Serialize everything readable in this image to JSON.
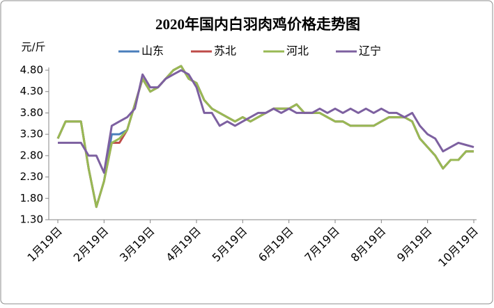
{
  "chart_data": {
    "type": "line",
    "title": "2020年国内白羽肉鸡价格走势图",
    "y_label": "元/斤",
    "categories": [
      "1月19日",
      null,
      null,
      null,
      null,
      null,
      "2月19日",
      null,
      null,
      null,
      null,
      null,
      "3月19日",
      null,
      null,
      null,
      null,
      null,
      "4月19日",
      null,
      null,
      null,
      null,
      null,
      "5月19日",
      null,
      null,
      null,
      null,
      null,
      "6月19日",
      null,
      null,
      null,
      null,
      null,
      "7月19日",
      null,
      null,
      null,
      null,
      null,
      "8月19日",
      null,
      null,
      null,
      null,
      null,
      "9月19日",
      null,
      null,
      null,
      null,
      null,
      "10月19日"
    ],
    "ylim": [
      1.3,
      4.8
    ],
    "yticks": [
      {
        "value": 1.3,
        "label": "1.30"
      },
      {
        "value": 1.8,
        "label": "1.80"
      },
      {
        "value": 2.3,
        "label": "2.30"
      },
      {
        "value": 2.8,
        "label": "2.80"
      },
      {
        "value": 3.3,
        "label": "3.30"
      },
      {
        "value": 3.8,
        "label": "3.80"
      },
      {
        "value": 4.3,
        "label": "4.30"
      },
      {
        "value": 4.8,
        "label": "4.80"
      }
    ],
    "grid": false,
    "series": [
      {
        "name": "山东",
        "color": "#4a7ebb",
        "values": [
          3.2,
          3.6,
          3.6,
          3.6,
          2.5,
          1.6,
          2.2,
          3.3,
          3.3,
          3.4,
          4.0,
          4.6,
          4.3,
          4.4,
          4.6,
          4.8,
          4.9,
          4.6,
          4.5,
          4.1,
          3.9,
          3.8,
          3.7,
          3.6,
          3.7,
          3.6,
          3.7,
          3.8,
          3.9,
          3.9,
          3.9,
          4.0,
          3.8,
          3.8,
          3.8,
          3.7,
          3.6,
          3.6,
          3.5,
          3.5,
          3.5,
          3.5,
          3.6,
          3.7,
          3.7,
          3.7,
          3.6,
          3.2,
          3.0,
          2.8,
          2.5,
          2.7,
          2.7,
          2.9,
          2.9
        ]
      },
      {
        "name": "苏北",
        "color": "#be4b48",
        "values": [
          3.2,
          3.6,
          3.6,
          3.6,
          2.5,
          1.6,
          2.2,
          3.1,
          3.1,
          3.4,
          4.0,
          4.6,
          4.3,
          4.4,
          4.6,
          4.8,
          4.9,
          4.6,
          4.5,
          4.1,
          3.9,
          3.8,
          3.7,
          3.6,
          3.7,
          3.6,
          3.7,
          3.8,
          3.9,
          3.9,
          3.9,
          4.0,
          3.8,
          3.8,
          3.8,
          3.7,
          3.6,
          3.6,
          3.5,
          3.5,
          3.5,
          3.5,
          3.6,
          3.7,
          3.7,
          3.7,
          3.6,
          3.2,
          3.0,
          2.8,
          2.5,
          2.7,
          2.7,
          2.9,
          2.9
        ]
      },
      {
        "name": "河北",
        "color": "#98b954",
        "values": [
          3.2,
          3.6,
          3.6,
          3.6,
          2.5,
          1.6,
          2.2,
          3.1,
          3.2,
          3.4,
          4.0,
          4.6,
          4.3,
          4.4,
          4.6,
          4.8,
          4.9,
          4.6,
          4.5,
          4.1,
          3.9,
          3.8,
          3.7,
          3.6,
          3.7,
          3.6,
          3.7,
          3.8,
          3.9,
          3.9,
          3.9,
          4.0,
          3.8,
          3.8,
          3.8,
          3.7,
          3.6,
          3.6,
          3.5,
          3.5,
          3.5,
          3.5,
          3.6,
          3.7,
          3.7,
          3.7,
          3.6,
          3.2,
          3.0,
          2.8,
          2.5,
          2.7,
          2.7,
          2.9,
          2.9
        ]
      },
      {
        "name": "辽宁",
        "color": "#7d60a0",
        "values": [
          3.1,
          3.1,
          3.1,
          3.1,
          2.8,
          2.8,
          2.4,
          3.5,
          3.6,
          3.7,
          3.9,
          4.7,
          4.4,
          4.4,
          4.6,
          4.7,
          4.8,
          4.7,
          4.4,
          3.8,
          3.8,
          3.5,
          3.6,
          3.5,
          3.6,
          3.7,
          3.8,
          3.8,
          3.9,
          3.8,
          3.9,
          3.8,
          3.8,
          3.8,
          3.9,
          3.8,
          3.9,
          3.8,
          3.9,
          3.8,
          3.9,
          3.8,
          3.9,
          3.8,
          3.8,
          3.7,
          3.8,
          3.5,
          3.3,
          3.2,
          2.9,
          3.0,
          3.1,
          3.05,
          3.0
        ]
      }
    ]
  }
}
